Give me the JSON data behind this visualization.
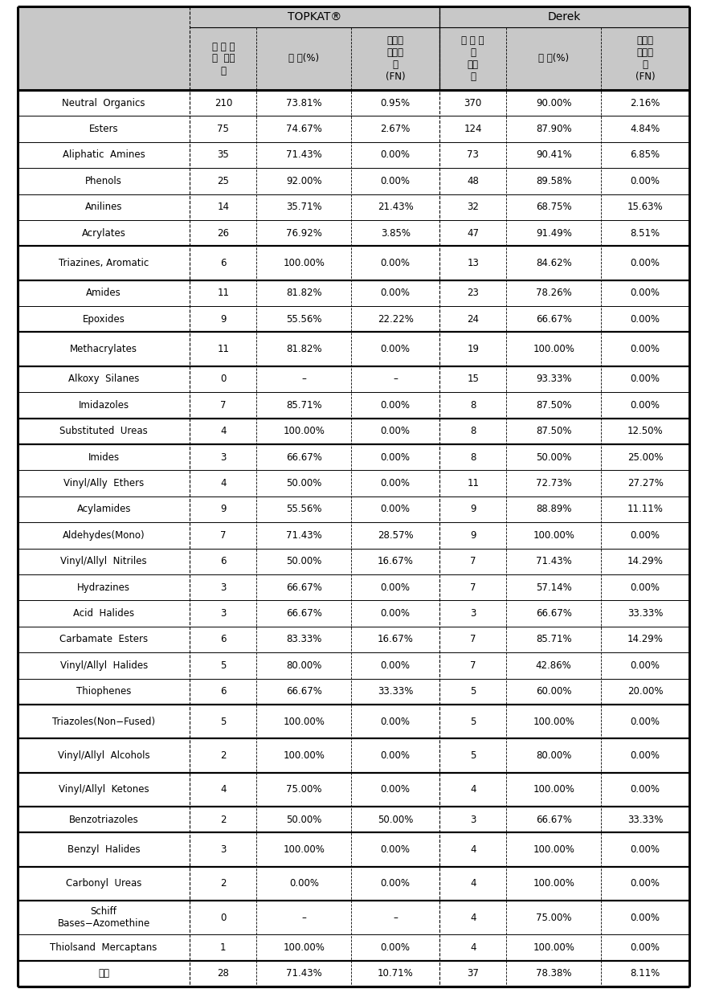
{
  "header_bg": "#C8C8C8",
  "row_bg": "#FFFFFF",
  "topkat_header": "TOPKAT®",
  "derek_header": "Derek",
  "col_headers_topkat": [
    "예 측 되\n는  물질\n수",
    "일 치(%)",
    "잘못된\n음성예\n측\n(FN)"
  ],
  "col_headers_derek": [
    "예 측 되\n는\n물질\n수",
    "일 치(%)",
    "잘못된\n음성예\n측\n(FN)"
  ],
  "rows": [
    [
      "Neutral  Organics",
      "210",
      "73.81%",
      "0.95%",
      "370",
      "90.00%",
      "2.16%"
    ],
    [
      "Esters",
      "75",
      "74.67%",
      "2.67%",
      "124",
      "87.90%",
      "4.84%"
    ],
    [
      "Aliphatic  Amines",
      "35",
      "71.43%",
      "0.00%",
      "73",
      "90.41%",
      "6.85%"
    ],
    [
      "Phenols",
      "25",
      "92.00%",
      "0.00%",
      "48",
      "89.58%",
      "0.00%"
    ],
    [
      "Anilines",
      "14",
      "35.71%",
      "21.43%",
      "32",
      "68.75%",
      "15.63%"
    ],
    [
      "Acrylates",
      "26",
      "76.92%",
      "3.85%",
      "47",
      "91.49%",
      "8.51%"
    ],
    [
      "Triazines, Aromatic",
      "6",
      "100.00%",
      "0.00%",
      "13",
      "84.62%",
      "0.00%"
    ],
    [
      "Amides",
      "11",
      "81.82%",
      "0.00%",
      "23",
      "78.26%",
      "0.00%"
    ],
    [
      "Epoxides",
      "9",
      "55.56%",
      "22.22%",
      "24",
      "66.67%",
      "0.00%"
    ],
    [
      "Methacrylates",
      "11",
      "81.82%",
      "0.00%",
      "19",
      "100.00%",
      "0.00%"
    ],
    [
      "Alkoxy  Silanes",
      "0",
      "–",
      "–",
      "15",
      "93.33%",
      "0.00%"
    ],
    [
      "Imidazoles",
      "7",
      "85.71%",
      "0.00%",
      "8",
      "87.50%",
      "0.00%"
    ],
    [
      "Substituted  Ureas",
      "4",
      "100.00%",
      "0.00%",
      "8",
      "87.50%",
      "12.50%"
    ],
    [
      "Imides",
      "3",
      "66.67%",
      "0.00%",
      "8",
      "50.00%",
      "25.00%"
    ],
    [
      "Vinyl/Ally  Ethers",
      "4",
      "50.00%",
      "0.00%",
      "11",
      "72.73%",
      "27.27%"
    ],
    [
      "Acylamides",
      "9",
      "55.56%",
      "0.00%",
      "9",
      "88.89%",
      "11.11%"
    ],
    [
      "Aldehydes(Mono)",
      "7",
      "71.43%",
      "28.57%",
      "9",
      "100.00%",
      "0.00%"
    ],
    [
      "Vinyl/Allyl  Nitriles",
      "6",
      "50.00%",
      "16.67%",
      "7",
      "71.43%",
      "14.29%"
    ],
    [
      "Hydrazines",
      "3",
      "66.67%",
      "0.00%",
      "7",
      "57.14%",
      "0.00%"
    ],
    [
      "Acid  Halides",
      "3",
      "66.67%",
      "0.00%",
      "3",
      "66.67%",
      "33.33%"
    ],
    [
      "Carbamate  Esters",
      "6",
      "83.33%",
      "16.67%",
      "7",
      "85.71%",
      "14.29%"
    ],
    [
      "Vinyl/Allyl  Halides",
      "5",
      "80.00%",
      "0.00%",
      "7",
      "42.86%",
      "0.00%"
    ],
    [
      "Thiophenes",
      "6",
      "66.67%",
      "33.33%",
      "5",
      "60.00%",
      "20.00%"
    ],
    [
      "Triazoles(Non−Fused)",
      "5",
      "100.00%",
      "0.00%",
      "5",
      "100.00%",
      "0.00%"
    ],
    [
      "Vinyl/Allyl  Alcohols",
      "2",
      "100.00%",
      "0.00%",
      "5",
      "80.00%",
      "0.00%"
    ],
    [
      "Vinyl/Allyl  Ketones",
      "4",
      "75.00%",
      "0.00%",
      "4",
      "100.00%",
      "0.00%"
    ],
    [
      "Benzotriazoles",
      "2",
      "50.00%",
      "50.00%",
      "3",
      "66.67%",
      "33.33%"
    ],
    [
      "Benzyl  Halides",
      "3",
      "100.00%",
      "0.00%",
      "4",
      "100.00%",
      "0.00%"
    ],
    [
      "Carbonyl  Ureas",
      "2",
      "0.00%",
      "0.00%",
      "4",
      "100.00%",
      "0.00%"
    ],
    [
      "Schiff\nBases−Azomethine",
      "0",
      "–",
      "–",
      "4",
      "75.00%",
      "0.00%"
    ],
    [
      "Thiolsand  Mercaptans",
      "1",
      "100.00%",
      "0.00%",
      "4",
      "100.00%",
      "0.00%"
    ],
    [
      "기타",
      "28",
      "71.43%",
      "10.71%",
      "37",
      "78.38%",
      "8.11%"
    ]
  ],
  "thick_after_rows": [
    5,
    6,
    8,
    9,
    11,
    12,
    22,
    23,
    24,
    25,
    26,
    27,
    28,
    30,
    31
  ],
  "tall_rows": [
    6,
    9,
    23,
    24,
    25,
    27,
    28,
    29
  ],
  "font_size": 8.5,
  "header_font_size": 10
}
